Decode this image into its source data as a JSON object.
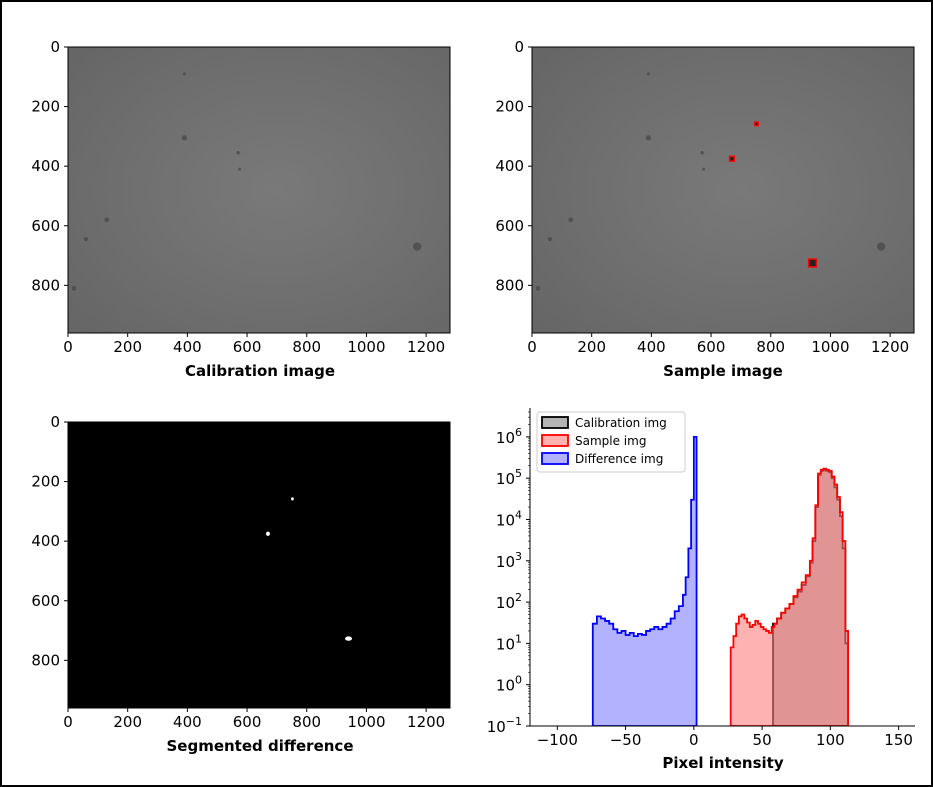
{
  "chart_data": [
    {
      "type": "image",
      "panel": "calibration",
      "xlabel": "Calibration image",
      "xticks": [
        0,
        200,
        400,
        600,
        800,
        1000,
        1200
      ],
      "yticks": [
        0,
        200,
        400,
        600,
        800
      ],
      "xlim": [
        0,
        1280
      ],
      "ylim": [
        960,
        0
      ],
      "background": "#6f6f6f",
      "spots": [
        {
          "x": 130,
          "y": 580,
          "r": 8
        },
        {
          "x": 60,
          "y": 645,
          "r": 7
        },
        {
          "x": 20,
          "y": 810,
          "r": 8
        },
        {
          "x": 390,
          "y": 305,
          "r": 9
        },
        {
          "x": 570,
          "y": 355,
          "r": 6
        },
        {
          "x": 575,
          "y": 410,
          "r": 5
        },
        {
          "x": 1170,
          "y": 670,
          "r": 14
        },
        {
          "x": 390,
          "y": 90,
          "r": 5
        }
      ]
    },
    {
      "type": "image",
      "panel": "sample",
      "xlabel": "Sample image",
      "xticks": [
        0,
        200,
        400,
        600,
        800,
        1000,
        1200
      ],
      "yticks": [
        0,
        200,
        400,
        600,
        800
      ],
      "xlim": [
        0,
        1280
      ],
      "ylim": [
        960,
        0
      ],
      "background": "#6f6f6f",
      "spots": [
        {
          "x": 130,
          "y": 580,
          "r": 8
        },
        {
          "x": 60,
          "y": 645,
          "r": 7
        },
        {
          "x": 20,
          "y": 810,
          "r": 8
        },
        {
          "x": 390,
          "y": 305,
          "r": 9
        },
        {
          "x": 570,
          "y": 355,
          "r": 6
        },
        {
          "x": 575,
          "y": 410,
          "r": 5
        },
        {
          "x": 1170,
          "y": 670,
          "r": 14
        },
        {
          "x": 390,
          "y": 90,
          "r": 5
        }
      ],
      "markers": [
        {
          "x": 752,
          "y": 258,
          "size": 12
        },
        {
          "x": 670,
          "y": 375,
          "size": 16
        },
        {
          "x": 940,
          "y": 725,
          "size": 26
        }
      ],
      "marker_color": "#ff0000"
    },
    {
      "type": "image",
      "panel": "segmented",
      "xlabel": "Segmented difference",
      "xticks": [
        0,
        200,
        400,
        600,
        800,
        1000,
        1200
      ],
      "yticks": [
        0,
        200,
        400,
        600,
        800
      ],
      "xlim": [
        0,
        1280
      ],
      "ylim": [
        960,
        0
      ],
      "background": "#000000",
      "blobs": [
        {
          "x": 752,
          "y": 258,
          "rx": 5,
          "ry": 6
        },
        {
          "x": 670,
          "y": 375,
          "rx": 7,
          "ry": 8
        },
        {
          "x": 940,
          "y": 727,
          "rx": 13,
          "ry": 8
        }
      ]
    },
    {
      "type": "histogram",
      "panel": "histogram",
      "xlabel": "Pixel intensity",
      "xticks": [
        -100,
        -50,
        0,
        50,
        100,
        150
      ],
      "xlim": [
        -120,
        162
      ],
      "yscale": "log",
      "ylim": [
        0.1,
        5000000
      ],
      "yticks_exp": [
        -1,
        0,
        1,
        2,
        3,
        4,
        5,
        6
      ],
      "legend_position": "top-left",
      "series": [
        {
          "name": "Calibration img",
          "fill": "#808080",
          "fill_opacity": 0.6,
          "edge": "#000000",
          "points": [
            [
              58,
              30
            ],
            [
              61,
              40
            ],
            [
              64,
              55
            ],
            [
              67,
              70
            ],
            [
              70,
              90
            ],
            [
              73,
              130
            ],
            [
              76,
              180
            ],
            [
              79,
              260
            ],
            [
              82,
              420
            ],
            [
              85,
              900
            ],
            [
              87,
              3000
            ],
            [
              89,
              20000
            ],
            [
              91,
              120000
            ],
            [
              93,
              150000
            ],
            [
              95,
              160000
            ],
            [
              97,
              150000
            ],
            [
              99,
              140000
            ],
            [
              101,
              100000
            ],
            [
              103,
              60000
            ],
            [
              105,
              30000
            ],
            [
              107,
              12000
            ],
            [
              109,
              2000
            ],
            [
              111,
              10
            ],
            [
              113,
              0.1
            ]
          ]
        },
        {
          "name": "Sample img",
          "fill": "#ff7f7f",
          "fill_opacity": 0.6,
          "edge": "#ff0000",
          "points": [
            [
              27,
              8
            ],
            [
              29,
              15
            ],
            [
              31,
              30
            ],
            [
              33,
              45
            ],
            [
              35,
              50
            ],
            [
              37,
              40
            ],
            [
              39,
              32
            ],
            [
              41,
              25
            ],
            [
              43,
              28
            ],
            [
              45,
              35
            ],
            [
              47,
              30
            ],
            [
              49,
              25
            ],
            [
              51,
              22
            ],
            [
              53,
              20
            ],
            [
              55,
              18
            ],
            [
              57,
              25
            ],
            [
              59,
              30
            ],
            [
              61,
              40
            ],
            [
              64,
              55
            ],
            [
              67,
              70
            ],
            [
              70,
              90
            ],
            [
              73,
              140
            ],
            [
              76,
              200
            ],
            [
              79,
              300
            ],
            [
              82,
              450
            ],
            [
              85,
              1000
            ],
            [
              87,
              3500
            ],
            [
              89,
              22000
            ],
            [
              91,
              130000
            ],
            [
              93,
              160000
            ],
            [
              95,
              170000
            ],
            [
              97,
              160000
            ],
            [
              99,
              150000
            ],
            [
              101,
              110000
            ],
            [
              103,
              70000
            ],
            [
              105,
              35000
            ],
            [
              107,
              15000
            ],
            [
              109,
              3000
            ],
            [
              111,
              20
            ],
            [
              113,
              0.1
            ]
          ]
        },
        {
          "name": "Difference img",
          "fill": "#7f7fff",
          "fill_opacity": 0.6,
          "edge": "#0000ff",
          "points": [
            [
              -74,
              30
            ],
            [
              -71,
              45
            ],
            [
              -68,
              40
            ],
            [
              -65,
              35
            ],
            [
              -62,
              30
            ],
            [
              -59,
              22
            ],
            [
              -56,
              18
            ],
            [
              -53,
              20
            ],
            [
              -50,
              16
            ],
            [
              -47,
              18
            ],
            [
              -44,
              15
            ],
            [
              -41,
              17
            ],
            [
              -38,
              16
            ],
            [
              -35,
              20
            ],
            [
              -32,
              22
            ],
            [
              -29,
              25
            ],
            [
              -26,
              22
            ],
            [
              -23,
              25
            ],
            [
              -20,
              30
            ],
            [
              -17,
              40
            ],
            [
              -14,
              60
            ],
            [
              -11,
              80
            ],
            [
              -8,
              150
            ],
            [
              -6,
              400
            ],
            [
              -4,
              2000
            ],
            [
              -2,
              30000
            ],
            [
              0,
              1000000
            ],
            [
              2,
              0.1
            ]
          ]
        }
      ]
    }
  ]
}
